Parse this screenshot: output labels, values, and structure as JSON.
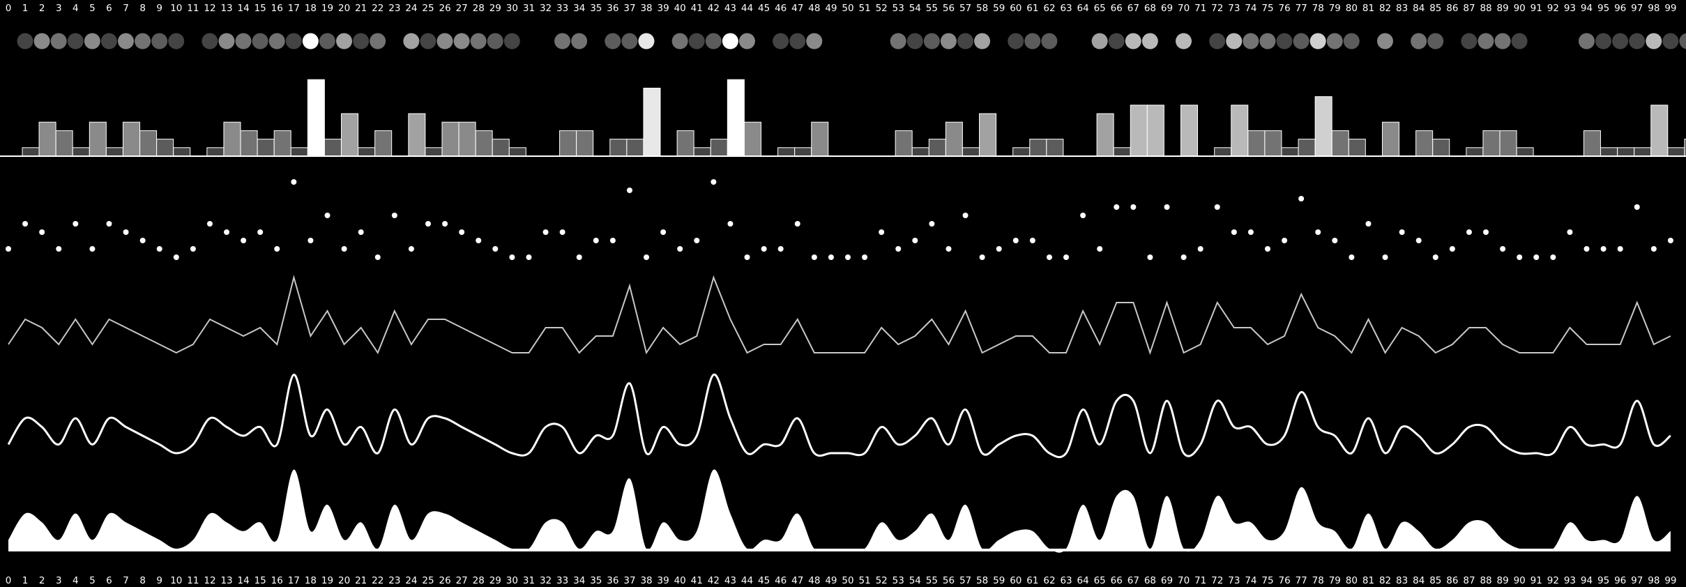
{
  "chart_data": {
    "type": "multi-view",
    "title": "",
    "xlabel": "",
    "ylabel": "",
    "categories": [
      "0",
      "1",
      "2",
      "3",
      "4",
      "5",
      "6",
      "7",
      "8",
      "9",
      "10",
      "11",
      "12",
      "13",
      "14",
      "15",
      "16",
      "17",
      "18",
      "19",
      "20",
      "21",
      "22",
      "23",
      "24",
      "25",
      "26",
      "27",
      "28",
      "29",
      "30",
      "31",
      "32",
      "33",
      "34",
      "35",
      "36",
      "37",
      "38",
      "39",
      "40",
      "41",
      "42",
      "43",
      "44",
      "45",
      "46",
      "47",
      "48",
      "49",
      "50",
      "51",
      "52",
      "53",
      "54",
      "55",
      "56",
      "57",
      "58",
      "59",
      "60",
      "61",
      "62",
      "63",
      "64",
      "65",
      "66",
      "67",
      "68",
      "69",
      "70",
      "71",
      "72",
      "73",
      "74",
      "75",
      "76",
      "77",
      "78",
      "79",
      "80",
      "81",
      "82",
      "83",
      "84",
      "85",
      "86",
      "87",
      "88",
      "89",
      "90",
      "91",
      "92",
      "93",
      "94",
      "95",
      "96",
      "97",
      "98",
      "99"
    ],
    "values": [
      1,
      4,
      3,
      1,
      4,
      1,
      4,
      3,
      2,
      1,
      0,
      1,
      4,
      3,
      2,
      3,
      1,
      9,
      2,
      5,
      1,
      3,
      0,
      5,
      1,
      4,
      4,
      3,
      2,
      1,
      0,
      0,
      3,
      3,
      0,
      2,
      2,
      8,
      0,
      3,
      1,
      2,
      9,
      4,
      0,
      1,
      1,
      4,
      0,
      0,
      0,
      0,
      3,
      1,
      2,
      4,
      1,
      5,
      0,
      1,
      2,
      2,
      0,
      0,
      5,
      1,
      6,
      6,
      0,
      6,
      0,
      1,
      6,
      3,
      3,
      1,
      2,
      7,
      3,
      2,
      0,
      4,
      0,
      3,
      2,
      0,
      1,
      3,
      3,
      1,
      0,
      0,
      0,
      3,
      1,
      1,
      1,
      6,
      1,
      2
    ],
    "ylim": [
      0,
      9
    ],
    "views": [
      "heat-dots",
      "bars",
      "scatter",
      "line",
      "smooth-line",
      "area"
    ],
    "grid": false,
    "legend": "none",
    "colors": {
      "background": "#000000",
      "foreground": "#ffffff",
      "baseline": "#ffffff"
    }
  }
}
